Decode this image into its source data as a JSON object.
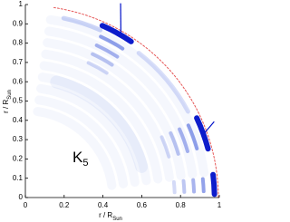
{
  "chart_data": {
    "type": "image",
    "xlabel": "r / R",
    "xlabel_sub": "Sun",
    "ylabel": "r / R",
    "ylabel_sub": "Sun",
    "annotation": "K",
    "annotation_sub": "5",
    "xlim": [
      0,
      1
    ],
    "ylim": [
      0,
      1
    ],
    "xticks": [
      0,
      0.2,
      0.4,
      0.6,
      0.8,
      1
    ],
    "yticks": [
      0,
      0.1,
      0.2,
      0.3,
      0.4,
      0.5,
      0.6,
      0.7,
      0.8,
      0.9,
      1
    ]
  }
}
